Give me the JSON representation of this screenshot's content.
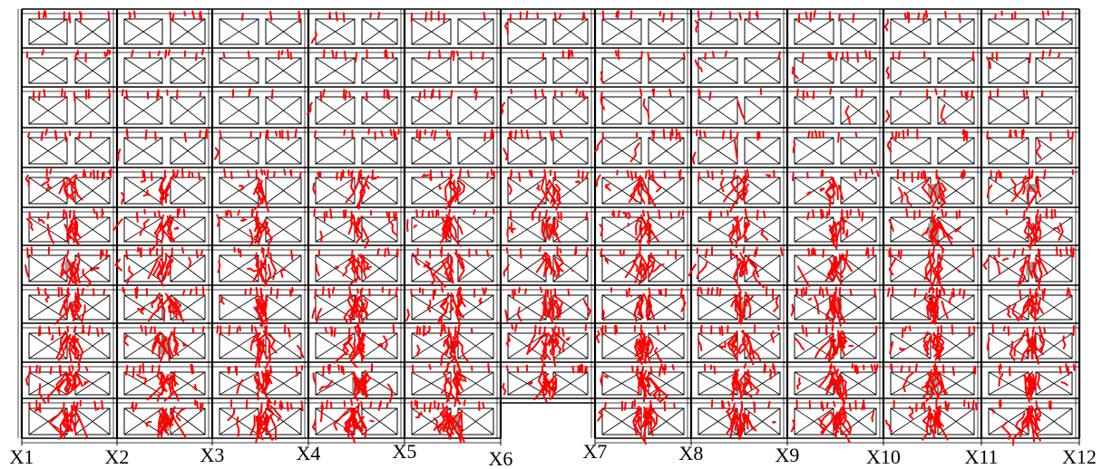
{
  "axis_labels": [
    "X1",
    "X2",
    "X3",
    "X4",
    "X5",
    "X6",
    "X7",
    "X8",
    "X9",
    "X10",
    "X11",
    "X12"
  ],
  "floors": 11,
  "bays": 11,
  "missing_bottom_bay": 6,
  "colors": {
    "frame": "#000000",
    "crack": "#ff0000",
    "spall": "#9aa29a",
    "background": "#ffffff"
  }
}
